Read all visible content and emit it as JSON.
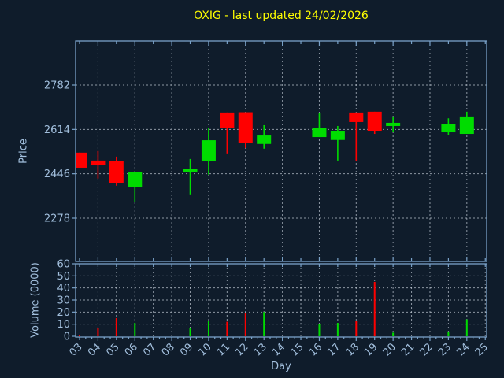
{
  "title": "OXIG - last updated 24/02/2026",
  "colors": {
    "background": "#0f1c2b",
    "axis": "#79a1c8",
    "tick_label": "#a2bfdd",
    "title": "#ffff00",
    "grid": "#c3ccd6",
    "up": "#00dc00",
    "down": "#ff0000"
  },
  "chart_data": [
    {
      "type": "candlestick",
      "title": "OXIG - last updated 24/02/2026",
      "xlabel": "Day",
      "ylabel": "Price",
      "x_tick_labels": [
        "03",
        "04",
        "05",
        "06",
        "07",
        "08",
        "09",
        "10",
        "11",
        "12",
        "13",
        "14",
        "15",
        "16",
        "17",
        "18",
        "19",
        "20",
        "21",
        "22",
        "23",
        "24",
        "25"
      ],
      "x_domain_days": [
        3,
        25
      ],
      "y_ticks": [
        2278,
        2446,
        2614,
        2782
      ],
      "ylim": [
        2110,
        2950
      ],
      "grid": "dotted, horizontal at y_ticks, vertical at even days",
      "legend": "none",
      "candles": [
        {
          "day": 3,
          "open": 2526,
          "high": 2526,
          "low": 2469,
          "close": 2469
        },
        {
          "day": 4,
          "open": 2496,
          "high": 2532,
          "low": 2428,
          "close": 2478
        },
        {
          "day": 5,
          "open": 2493,
          "high": 2511,
          "low": 2401,
          "close": 2410
        },
        {
          "day": 6,
          "open": 2395,
          "high": 2451,
          "low": 2338,
          "close": 2451
        },
        {
          "day": 9,
          "open": 2451,
          "high": 2502,
          "low": 2368,
          "close": 2463
        },
        {
          "day": 10,
          "open": 2493,
          "high": 2618,
          "low": 2443,
          "close": 2573
        },
        {
          "day": 11,
          "open": 2678,
          "high": 2678,
          "low": 2523,
          "close": 2618
        },
        {
          "day": 12,
          "open": 2679,
          "high": 2679,
          "low": 2544,
          "close": 2562
        },
        {
          "day": 13,
          "open": 2559,
          "high": 2630,
          "low": 2541,
          "close": 2591
        },
        {
          "day": 16,
          "open": 2585,
          "high": 2675,
          "low": 2585,
          "close": 2618
        },
        {
          "day": 17,
          "open": 2574,
          "high": 2627,
          "low": 2496,
          "close": 2609
        },
        {
          "day": 18,
          "open": 2678,
          "high": 2678,
          "low": 2496,
          "close": 2642
        },
        {
          "day": 19,
          "open": 2681,
          "high": 2681,
          "low": 2597,
          "close": 2609
        },
        {
          "day": 20,
          "open": 2627,
          "high": 2663,
          "low": 2606,
          "close": 2639
        },
        {
          "day": 23,
          "open": 2603,
          "high": 2656,
          "low": 2594,
          "close": 2633
        },
        {
          "day": 24,
          "open": 2597,
          "high": 2681,
          "low": 2597,
          "close": 2663
        }
      ]
    },
    {
      "type": "bar",
      "ylabel": "Volume (0000)",
      "y_ticks": [
        0,
        10,
        20,
        30,
        40,
        50,
        60
      ],
      "ylim": [
        0,
        60
      ],
      "grid": "dotted, horizontal at y_ticks, vertical at every day",
      "bars": [
        {
          "day": 3,
          "value": 1,
          "direction": "down"
        },
        {
          "day": 4,
          "value": 7,
          "direction": "down"
        },
        {
          "day": 5,
          "value": 15,
          "direction": "down"
        },
        {
          "day": 6,
          "value": 11,
          "direction": "up"
        },
        {
          "day": 9,
          "value": 7,
          "direction": "up"
        },
        {
          "day": 10,
          "value": 13,
          "direction": "up"
        },
        {
          "day": 11,
          "value": 12,
          "direction": "down"
        },
        {
          "day": 12,
          "value": 19,
          "direction": "down"
        },
        {
          "day": 13,
          "value": 20,
          "direction": "up"
        },
        {
          "day": 16,
          "value": 10,
          "direction": "up"
        },
        {
          "day": 17,
          "value": 11,
          "direction": "up"
        },
        {
          "day": 18,
          "value": 13,
          "direction": "down"
        },
        {
          "day": 19,
          "value": 45,
          "direction": "down"
        },
        {
          "day": 20,
          "value": 3,
          "direction": "up"
        },
        {
          "day": 23,
          "value": 4,
          "direction": "up"
        },
        {
          "day": 24,
          "value": 14,
          "direction": "up"
        }
      ]
    }
  ]
}
